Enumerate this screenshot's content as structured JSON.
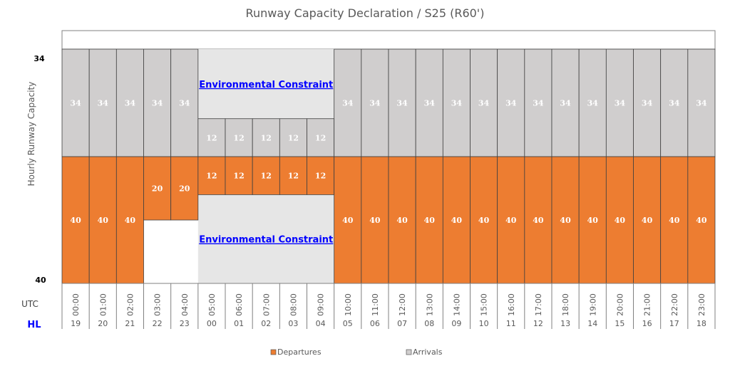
{
  "chart_data": {
    "type": "bar",
    "title": "Runway Capacity Declaration / S25 (R60')",
    "ylabel": "Hourly Runway Capacity",
    "y_top_tick": "34",
    "y_bottom_tick": "40",
    "row_labels": {
      "utc": "UTC",
      "hl": "HL"
    },
    "categories": [
      "00:00",
      "01:00",
      "02:00",
      "03:00",
      "04:00",
      "05:00",
      "06:00",
      "07:00",
      "08:00",
      "09:00",
      "10:00",
      "11:00",
      "12:00",
      "13:00",
      "14:00",
      "15:00",
      "16:00",
      "17:00",
      "18:00",
      "19:00",
      "20:00",
      "21:00",
      "22:00",
      "23:00"
    ],
    "hl": [
      "19",
      "20",
      "21",
      "22",
      "23",
      "00",
      "01",
      "02",
      "03",
      "04",
      "05",
      "06",
      "07",
      "08",
      "09",
      "10",
      "11",
      "12",
      "13",
      "14",
      "15",
      "16",
      "17",
      "18"
    ],
    "series": [
      {
        "name": "Arrivals",
        "color": "#D0CECE",
        "max": 34,
        "values": [
          34,
          34,
          34,
          34,
          34,
          12,
          12,
          12,
          12,
          12,
          34,
          34,
          34,
          34,
          34,
          34,
          34,
          34,
          34,
          34,
          34,
          34,
          34,
          34
        ]
      },
      {
        "name": "Departures",
        "color": "#ED7D31",
        "max": 40,
        "values": [
          40,
          40,
          40,
          20,
          20,
          12,
          12,
          12,
          12,
          12,
          40,
          40,
          40,
          40,
          40,
          40,
          40,
          40,
          40,
          40,
          40,
          40,
          40,
          40
        ]
      }
    ],
    "annotations": [
      {
        "text": "Environmental Constraint",
        "series": "Arrivals",
        "from": "05:00",
        "to": "09:00"
      },
      {
        "text": "Environmental Constraint",
        "series": "Departures",
        "from": "05:00",
        "to": "09:00"
      }
    ],
    "constraint_color": "#E6E6E6",
    "legend": [
      "Departures",
      "Arrivals"
    ],
    "legend_position": "bottom"
  }
}
